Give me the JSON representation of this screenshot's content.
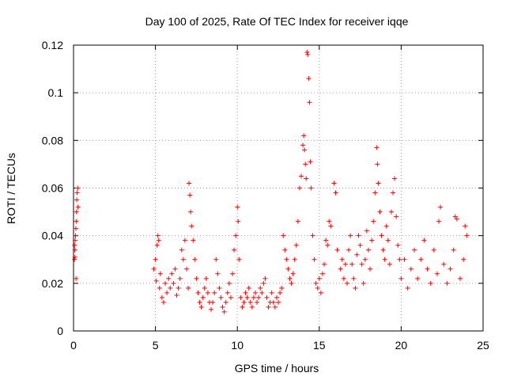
{
  "chart_data": {
    "type": "scatter",
    "title": "Day 100 of 2025, Rate Of TEC Index for receiver iqqe",
    "xlabel": "GPS time / hours",
    "ylabel": "ROTI / TECUs",
    "xlim": [
      0,
      25
    ],
    "ylim": [
      0,
      0.12
    ],
    "x_ticks": [
      0,
      5,
      10,
      15,
      20,
      25
    ],
    "x_tick_labels": [
      "0",
      "5",
      "10",
      "15",
      "20",
      "25"
    ],
    "y_ticks": [
      0,
      0.02,
      0.04,
      0.06,
      0.08,
      0.1,
      0.12
    ],
    "y_tick_labels": [
      "0",
      "0.02",
      "0.04",
      "0.06",
      "0.08",
      "0.1",
      "0.12"
    ],
    "grid": true,
    "marker": "+",
    "colors": {
      "points": "#ff0000",
      "grid": "#a0a0a0",
      "axes": "#000000"
    },
    "series": [
      {
        "points": [
          [
            0.05,
            0.03
          ],
          [
            0.08,
            0.034
          ],
          [
            0.1,
            0.038
          ],
          [
            0.12,
            0.04
          ],
          [
            0.14,
            0.043
          ],
          [
            0.16,
            0.046
          ],
          [
            0.18,
            0.05
          ],
          [
            0.2,
            0.055
          ],
          [
            0.22,
            0.058
          ],
          [
            0.25,
            0.06
          ],
          [
            0.27,
            0.052
          ],
          [
            0.15,
            0.022
          ],
          [
            0.06,
            0.036
          ],
          [
            0.09,
            0.031
          ],
          [
            4.9,
            0.026
          ],
          [
            5.0,
            0.03
          ],
          [
            5.05,
            0.021
          ],
          [
            5.1,
            0.036
          ],
          [
            5.15,
            0.04
          ],
          [
            5.2,
            0.038
          ],
          [
            5.25,
            0.018
          ],
          [
            5.3,
            0.024
          ],
          [
            5.4,
            0.014
          ],
          [
            5.5,
            0.012
          ],
          [
            5.6,
            0.02
          ],
          [
            5.7,
            0.016
          ],
          [
            5.8,
            0.022
          ],
          [
            5.9,
            0.018
          ],
          [
            6.0,
            0.024
          ],
          [
            6.1,
            0.02
          ],
          [
            6.2,
            0.026
          ],
          [
            6.3,
            0.015
          ],
          [
            6.4,
            0.018
          ],
          [
            6.5,
            0.022
          ],
          [
            6.6,
            0.034
          ],
          [
            6.7,
            0.03
          ],
          [
            6.8,
            0.038
          ],
          [
            6.9,
            0.026
          ],
          [
            7.0,
            0.018
          ],
          [
            7.05,
            0.062
          ],
          [
            7.1,
            0.057
          ],
          [
            7.15,
            0.05
          ],
          [
            7.2,
            0.044
          ],
          [
            7.3,
            0.038
          ],
          [
            7.4,
            0.03
          ],
          [
            7.5,
            0.022
          ],
          [
            7.6,
            0.016
          ],
          [
            7.7,
            0.012
          ],
          [
            7.8,
            0.01
          ],
          [
            7.9,
            0.014
          ],
          [
            8.0,
            0.018
          ],
          [
            8.1,
            0.022
          ],
          [
            8.2,
            0.016
          ],
          [
            8.3,
            0.012
          ],
          [
            8.4,
            0.009
          ],
          [
            8.5,
            0.012
          ],
          [
            8.6,
            0.016
          ],
          [
            8.7,
            0.03
          ],
          [
            8.8,
            0.024
          ],
          [
            8.9,
            0.018
          ],
          [
            9.0,
            0.014
          ],
          [
            9.1,
            0.01
          ],
          [
            9.2,
            0.008
          ],
          [
            9.3,
            0.012
          ],
          [
            9.4,
            0.016
          ],
          [
            9.5,
            0.02
          ],
          [
            9.6,
            0.014
          ],
          [
            9.7,
            0.024
          ],
          [
            9.8,
            0.034
          ],
          [
            9.9,
            0.04
          ],
          [
            10.0,
            0.052
          ],
          [
            10.05,
            0.046
          ],
          [
            10.1,
            0.03
          ],
          [
            10.2,
            0.014
          ],
          [
            10.3,
            0.01
          ],
          [
            10.4,
            0.012
          ],
          [
            10.5,
            0.016
          ],
          [
            10.6,
            0.014
          ],
          [
            10.7,
            0.018
          ],
          [
            10.8,
            0.012
          ],
          [
            10.9,
            0.01
          ],
          [
            11.0,
            0.014
          ],
          [
            11.1,
            0.016
          ],
          [
            11.2,
            0.012
          ],
          [
            11.3,
            0.014
          ],
          [
            11.4,
            0.018
          ],
          [
            11.5,
            0.016
          ],
          [
            11.6,
            0.02
          ],
          [
            11.7,
            0.022
          ],
          [
            11.8,
            0.014
          ],
          [
            11.9,
            0.01
          ],
          [
            12.0,
            0.012
          ],
          [
            12.1,
            0.016
          ],
          [
            12.2,
            0.012
          ],
          [
            12.3,
            0.01
          ],
          [
            12.4,
            0.014
          ],
          [
            12.5,
            0.012
          ],
          [
            12.6,
            0.016
          ],
          [
            12.7,
            0.018
          ],
          [
            12.8,
            0.04
          ],
          [
            12.9,
            0.034
          ],
          [
            13.0,
            0.03
          ],
          [
            13.1,
            0.026
          ],
          [
            13.2,
            0.022
          ],
          [
            13.3,
            0.02
          ],
          [
            13.4,
            0.024
          ],
          [
            13.5,
            0.03
          ],
          [
            13.6,
            0.036
          ],
          [
            13.7,
            0.046
          ],
          [
            13.8,
            0.06
          ],
          [
            13.9,
            0.065
          ],
          [
            14.0,
            0.078
          ],
          [
            14.05,
            0.082
          ],
          [
            14.1,
            0.076
          ],
          [
            14.15,
            0.07
          ],
          [
            14.2,
            0.064
          ],
          [
            14.25,
            0.117
          ],
          [
            14.3,
            0.116
          ],
          [
            14.35,
            0.106
          ],
          [
            14.4,
            0.096
          ],
          [
            14.45,
            0.071
          ],
          [
            14.5,
            0.06
          ],
          [
            14.6,
            0.04
          ],
          [
            14.7,
            0.03
          ],
          [
            14.8,
            0.02
          ],
          [
            14.9,
            0.018
          ],
          [
            15.0,
            0.022
          ],
          [
            15.1,
            0.016
          ],
          [
            15.2,
            0.024
          ],
          [
            15.3,
            0.028
          ],
          [
            15.4,
            0.038
          ],
          [
            15.5,
            0.036
          ],
          [
            15.6,
            0.046
          ],
          [
            15.7,
            0.044
          ],
          [
            15.9,
            0.062
          ],
          [
            16.0,
            0.058
          ],
          [
            16.1,
            0.034
          ],
          [
            16.3,
            0.026
          ],
          [
            16.4,
            0.03
          ],
          [
            16.5,
            0.022
          ],
          [
            16.6,
            0.028
          ],
          [
            16.7,
            0.02
          ],
          [
            16.8,
            0.034
          ],
          [
            16.9,
            0.04
          ],
          [
            17.0,
            0.028
          ],
          [
            17.1,
            0.022
          ],
          [
            17.2,
            0.018
          ],
          [
            17.3,
            0.032
          ],
          [
            17.4,
            0.04
          ],
          [
            17.5,
            0.036
          ],
          [
            17.6,
            0.028
          ],
          [
            17.7,
            0.02
          ],
          [
            17.8,
            0.03
          ],
          [
            17.9,
            0.042
          ],
          [
            18.0,
            0.034
          ],
          [
            18.1,
            0.026
          ],
          [
            18.2,
            0.038
          ],
          [
            18.3,
            0.046
          ],
          [
            18.4,
            0.058
          ],
          [
            18.5,
            0.077
          ],
          [
            18.55,
            0.07
          ],
          [
            18.6,
            0.062
          ],
          [
            18.7,
            0.05
          ],
          [
            18.8,
            0.04
          ],
          [
            18.9,
            0.034
          ],
          [
            19.0,
            0.03
          ],
          [
            19.1,
            0.044
          ],
          [
            19.2,
            0.038
          ],
          [
            19.3,
            0.028
          ],
          [
            19.4,
            0.05
          ],
          [
            19.5,
            0.058
          ],
          [
            19.6,
            0.064
          ],
          [
            19.7,
            0.048
          ],
          [
            19.8,
            0.036
          ],
          [
            19.9,
            0.03
          ],
          [
            20.0,
            0.022
          ],
          [
            20.2,
            0.03
          ],
          [
            20.4,
            0.018
          ],
          [
            20.6,
            0.026
          ],
          [
            20.8,
            0.034
          ],
          [
            21.0,
            0.022
          ],
          [
            21.2,
            0.03
          ],
          [
            21.4,
            0.038
          ],
          [
            21.6,
            0.026
          ],
          [
            21.8,
            0.02
          ],
          [
            22.0,
            0.034
          ],
          [
            22.2,
            0.024
          ],
          [
            22.3,
            0.046
          ],
          [
            22.4,
            0.052
          ],
          [
            22.6,
            0.028
          ],
          [
            22.8,
            0.02
          ],
          [
            23.0,
            0.026
          ],
          [
            23.2,
            0.034
          ],
          [
            23.3,
            0.048
          ],
          [
            23.4,
            0.047
          ],
          [
            23.6,
            0.022
          ],
          [
            23.8,
            0.03
          ],
          [
            23.9,
            0.044
          ],
          [
            24.0,
            0.04
          ]
        ]
      }
    ]
  }
}
